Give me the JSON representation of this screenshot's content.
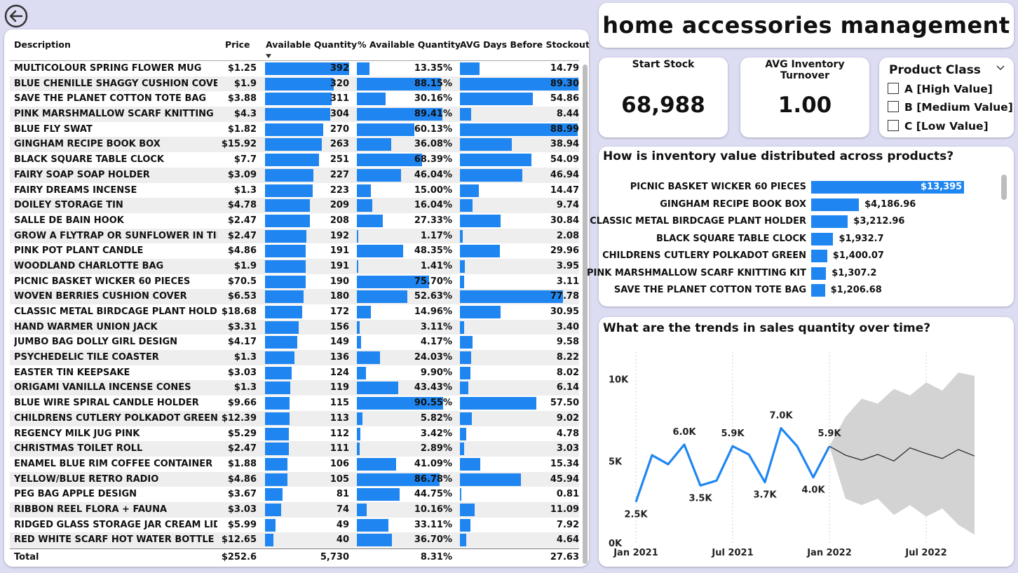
{
  "title": "home accessories management",
  "nav": {
    "back_icon": "back-arrow-icon"
  },
  "table": {
    "headers": {
      "description": "Description",
      "price": "Price",
      "qty": "Available Quantity",
      "pct": "% Available Quantity",
      "days": "AVG Days Before Stockout"
    },
    "rows": [
      {
        "description": "MULTICOLOUR SPRING FLOWER MUG",
        "price": "$1.25",
        "qty": 392,
        "pct": "13.35%",
        "pct_val": 13.35,
        "days": "14.79",
        "days_val": 14.79
      },
      {
        "description": "BLUE CHENILLE SHAGGY CUSHION COVER",
        "price": "$1.9",
        "qty": 320,
        "pct": "88.15%",
        "pct_val": 88.15,
        "days": "89.30",
        "days_val": 89.3
      },
      {
        "description": "SAVE THE PLANET COTTON TOTE BAG",
        "price": "$3.88",
        "qty": 311,
        "pct": "30.16%",
        "pct_val": 30.16,
        "days": "54.86",
        "days_val": 54.86
      },
      {
        "description": "PINK MARSHMALLOW SCARF KNITTING KIT",
        "price": "$4.3",
        "qty": 304,
        "pct": "89.41%",
        "pct_val": 89.41,
        "days": "8.44",
        "days_val": 8.44
      },
      {
        "description": "BLUE FLY SWAT",
        "price": "$1.82",
        "qty": 270,
        "pct": "60.13%",
        "pct_val": 60.13,
        "days": "88.99",
        "days_val": 88.99
      },
      {
        "description": "GINGHAM RECIPE BOOK BOX",
        "price": "$15.92",
        "qty": 263,
        "pct": "36.08%",
        "pct_val": 36.08,
        "days": "38.94",
        "days_val": 38.94
      },
      {
        "description": "BLACK SQUARE TABLE CLOCK",
        "price": "$7.7",
        "qty": 251,
        "pct": "68.39%",
        "pct_val": 68.39,
        "days": "54.09",
        "days_val": 54.09
      },
      {
        "description": "FAIRY SOAP SOAP HOLDER",
        "price": "$3.09",
        "qty": 227,
        "pct": "46.04%",
        "pct_val": 46.04,
        "days": "46.94",
        "days_val": 46.94
      },
      {
        "description": "FAIRY DREAMS INCENSE",
        "price": "$1.3",
        "qty": 223,
        "pct": "15.00%",
        "pct_val": 15.0,
        "days": "14.47",
        "days_val": 14.47
      },
      {
        "description": "DOILEY STORAGE TIN",
        "price": "$4.78",
        "qty": 209,
        "pct": "16.04%",
        "pct_val": 16.04,
        "days": "9.74",
        "days_val": 9.74
      },
      {
        "description": "SALLE DE BAIN HOOK",
        "price": "$2.47",
        "qty": 208,
        "pct": "27.33%",
        "pct_val": 27.33,
        "days": "30.84",
        "days_val": 30.84
      },
      {
        "description": "GROW A FLYTRAP OR SUNFLOWER IN TIN",
        "price": "$2.47",
        "qty": 192,
        "pct": "1.17%",
        "pct_val": 1.17,
        "days": "2.08",
        "days_val": 2.08
      },
      {
        "description": "PINK POT PLANT CANDLE",
        "price": "$4.86",
        "qty": 191,
        "pct": "48.35%",
        "pct_val": 48.35,
        "days": "29.96",
        "days_val": 29.96
      },
      {
        "description": "WOODLAND CHARLOTTE BAG",
        "price": "$1.9",
        "qty": 191,
        "pct": "1.41%",
        "pct_val": 1.41,
        "days": "3.95",
        "days_val": 3.95
      },
      {
        "description": "PICNIC BASKET WICKER 60 PIECES",
        "price": "$70.5",
        "qty": 190,
        "pct": "75.70%",
        "pct_val": 75.7,
        "days": "3.11",
        "days_val": 3.11
      },
      {
        "description": "WOVEN BERRIES CUSHION COVER",
        "price": "$6.53",
        "qty": 180,
        "pct": "52.63%",
        "pct_val": 52.63,
        "days": "77.78",
        "days_val": 77.78
      },
      {
        "description": "CLASSIC METAL BIRDCAGE PLANT HOLDER",
        "price": "$18.68",
        "qty": 172,
        "pct": "14.96%",
        "pct_val": 14.96,
        "days": "30.95",
        "days_val": 30.95
      },
      {
        "description": "HAND WARMER UNION JACK",
        "price": "$3.31",
        "qty": 156,
        "pct": "3.11%",
        "pct_val": 3.11,
        "days": "3.40",
        "days_val": 3.4
      },
      {
        "description": "JUMBO BAG DOLLY GIRL DESIGN",
        "price": "$4.17",
        "qty": 149,
        "pct": "4.17%",
        "pct_val": 4.17,
        "days": "9.58",
        "days_val": 9.58
      },
      {
        "description": "PSYCHEDELIC TILE COASTER",
        "price": "$1.3",
        "qty": 136,
        "pct": "24.03%",
        "pct_val": 24.03,
        "days": "8.22",
        "days_val": 8.22
      },
      {
        "description": "EASTER TIN KEEPSAKE",
        "price": "$3.03",
        "qty": 124,
        "pct": "9.90%",
        "pct_val": 9.9,
        "days": "8.02",
        "days_val": 8.02
      },
      {
        "description": "ORIGAMI VANILLA INCENSE CONES",
        "price": "$1.3",
        "qty": 119,
        "pct": "43.43%",
        "pct_val": 43.43,
        "days": "6.14",
        "days_val": 6.14
      },
      {
        "description": "BLUE WIRE SPIRAL CANDLE HOLDER",
        "price": "$9.66",
        "qty": 115,
        "pct": "90.55%",
        "pct_val": 90.55,
        "days": "57.50",
        "days_val": 57.5
      },
      {
        "description": "CHILDRENS CUTLERY POLKADOT GREEN",
        "price": "$12.39",
        "qty": 113,
        "pct": "5.82%",
        "pct_val": 5.82,
        "days": "9.02",
        "days_val": 9.02
      },
      {
        "description": "REGENCY MILK JUG PINK",
        "price": "$5.29",
        "qty": 112,
        "pct": "3.42%",
        "pct_val": 3.42,
        "days": "4.78",
        "days_val": 4.78
      },
      {
        "description": "CHRISTMAS TOILET ROLL",
        "price": "$2.47",
        "qty": 111,
        "pct": "2.89%",
        "pct_val": 2.89,
        "days": "3.03",
        "days_val": 3.03
      },
      {
        "description": "ENAMEL BLUE RIM COFFEE CONTAINER",
        "price": "$1.88",
        "qty": 106,
        "pct": "41.09%",
        "pct_val": 41.09,
        "days": "15.34",
        "days_val": 15.34
      },
      {
        "description": "YELLOW/BLUE RETRO RADIO",
        "price": "$4.86",
        "qty": 105,
        "pct": "86.78%",
        "pct_val": 86.78,
        "days": "45.94",
        "days_val": 45.94
      },
      {
        "description": "PEG BAG APPLE DESIGN",
        "price": "$3.67",
        "qty": 81,
        "pct": "44.75%",
        "pct_val": 44.75,
        "days": "0.81",
        "days_val": 0.81
      },
      {
        "description": "RIBBON REEL FLORA + FAUNA",
        "price": "$3.03",
        "qty": 74,
        "pct": "10.16%",
        "pct_val": 10.16,
        "days": "11.09",
        "days_val": 11.09
      },
      {
        "description": "RIDGED GLASS STORAGE JAR CREAM LID",
        "price": "$5.99",
        "qty": 49,
        "pct": "33.11%",
        "pct_val": 33.11,
        "days": "7.92",
        "days_val": 7.92
      },
      {
        "description": "RED WHITE SCARF HOT WATER BOTTLE",
        "price": "$12.65",
        "qty": 40,
        "pct": "36.70%",
        "pct_val": 36.7,
        "days": "4.64",
        "days_val": 4.64
      }
    ],
    "total": {
      "label": "Total",
      "price": "$252.6",
      "qty": "5,730",
      "pct": "8.31%",
      "days": "27.63"
    }
  },
  "kpis": {
    "start_stock": {
      "label": "Start Stock",
      "value": "68,988"
    },
    "turnover": {
      "label": "AVG Inventory Turnover",
      "value": "1.00"
    }
  },
  "slicer": {
    "title": "Product Class",
    "options": [
      "A [High Value]",
      "B [Medium Value]",
      "C [Low Value]"
    ]
  },
  "value_chart": {
    "title": "How is inventory value distributed across products?",
    "chart_data": {
      "type": "bar",
      "orientation": "horizontal",
      "categories": [
        "PICNIC BASKET WICKER 60 PIECES",
        "GINGHAM RECIPE BOOK BOX",
        "CLASSIC METAL BIRDCAGE PLANT HOLDER",
        "BLACK SQUARE TABLE CLOCK",
        "CHILDRENS CUTLERY POLKADOT GREEN",
        "PINK MARSHMALLOW SCARF KNITTING KIT",
        "SAVE THE PLANET COTTON TOTE BAG"
      ],
      "values": [
        13395,
        4186.96,
        3212.96,
        1932.7,
        1400.07,
        1307.2,
        1206.68
      ],
      "labels": [
        "$13,395",
        "$4,186.96",
        "$3,212.96",
        "$1,932.7",
        "$1,400.07",
        "$1,307.2",
        "$1,206.68"
      ],
      "bar_color": "#1f86f1"
    }
  },
  "trend_chart": {
    "title": "What are the trends in sales quantity over time?",
    "chart_data": {
      "type": "line",
      "x": [
        "2021-01",
        "2021-02",
        "2021-03",
        "2021-04",
        "2021-05",
        "2021-06",
        "2021-07",
        "2021-08",
        "2021-09",
        "2021-10",
        "2021-11",
        "2021-12",
        "2022-01"
      ],
      "series": [
        {
          "values": [
            2500,
            5350,
            4800,
            6000,
            3500,
            3800,
            5900,
            5400,
            3700,
            7000,
            5900,
            4000,
            5900
          ]
        }
      ],
      "forecast": {
        "x": [
          "2022-01",
          "2022-02",
          "2022-03",
          "2022-04",
          "2022-05",
          "2022-06",
          "2022-07",
          "2022-08",
          "2022-09",
          "2022-10"
        ],
        "values": [
          5900,
          5350,
          5050,
          5400,
          5000,
          5800,
          5450,
          5150,
          5700,
          5300
        ],
        "upper": [
          5900,
          7700,
          8800,
          8500,
          9400,
          9000,
          9800,
          9300,
          10400,
          10200
        ],
        "lower": [
          5900,
          2700,
          2300,
          2700,
          1700,
          2300,
          1600,
          2100,
          1100,
          500
        ]
      },
      "point_labels": [
        {
          "i": 0,
          "text": "2.5K"
        },
        {
          "i": 3,
          "text": "6.0K"
        },
        {
          "i": 4,
          "text": "3.5K"
        },
        {
          "i": 6,
          "text": "5.9K"
        },
        {
          "i": 8,
          "text": "3.7K"
        },
        {
          "i": 9,
          "text": "7.0K"
        },
        {
          "i": 11,
          "text": "4.0K"
        },
        {
          "i": 12,
          "text": "5.9K"
        }
      ],
      "y_ticks": [
        "0K",
        "5K",
        "10K"
      ],
      "x_ticks": [
        "Jan 2021",
        "Jul 2021",
        "Jan 2022",
        "Jul 2022"
      ],
      "ylim": [
        0,
        10000
      ],
      "line_color": "#1f86f1",
      "band_color": "#d3d3d3"
    }
  }
}
